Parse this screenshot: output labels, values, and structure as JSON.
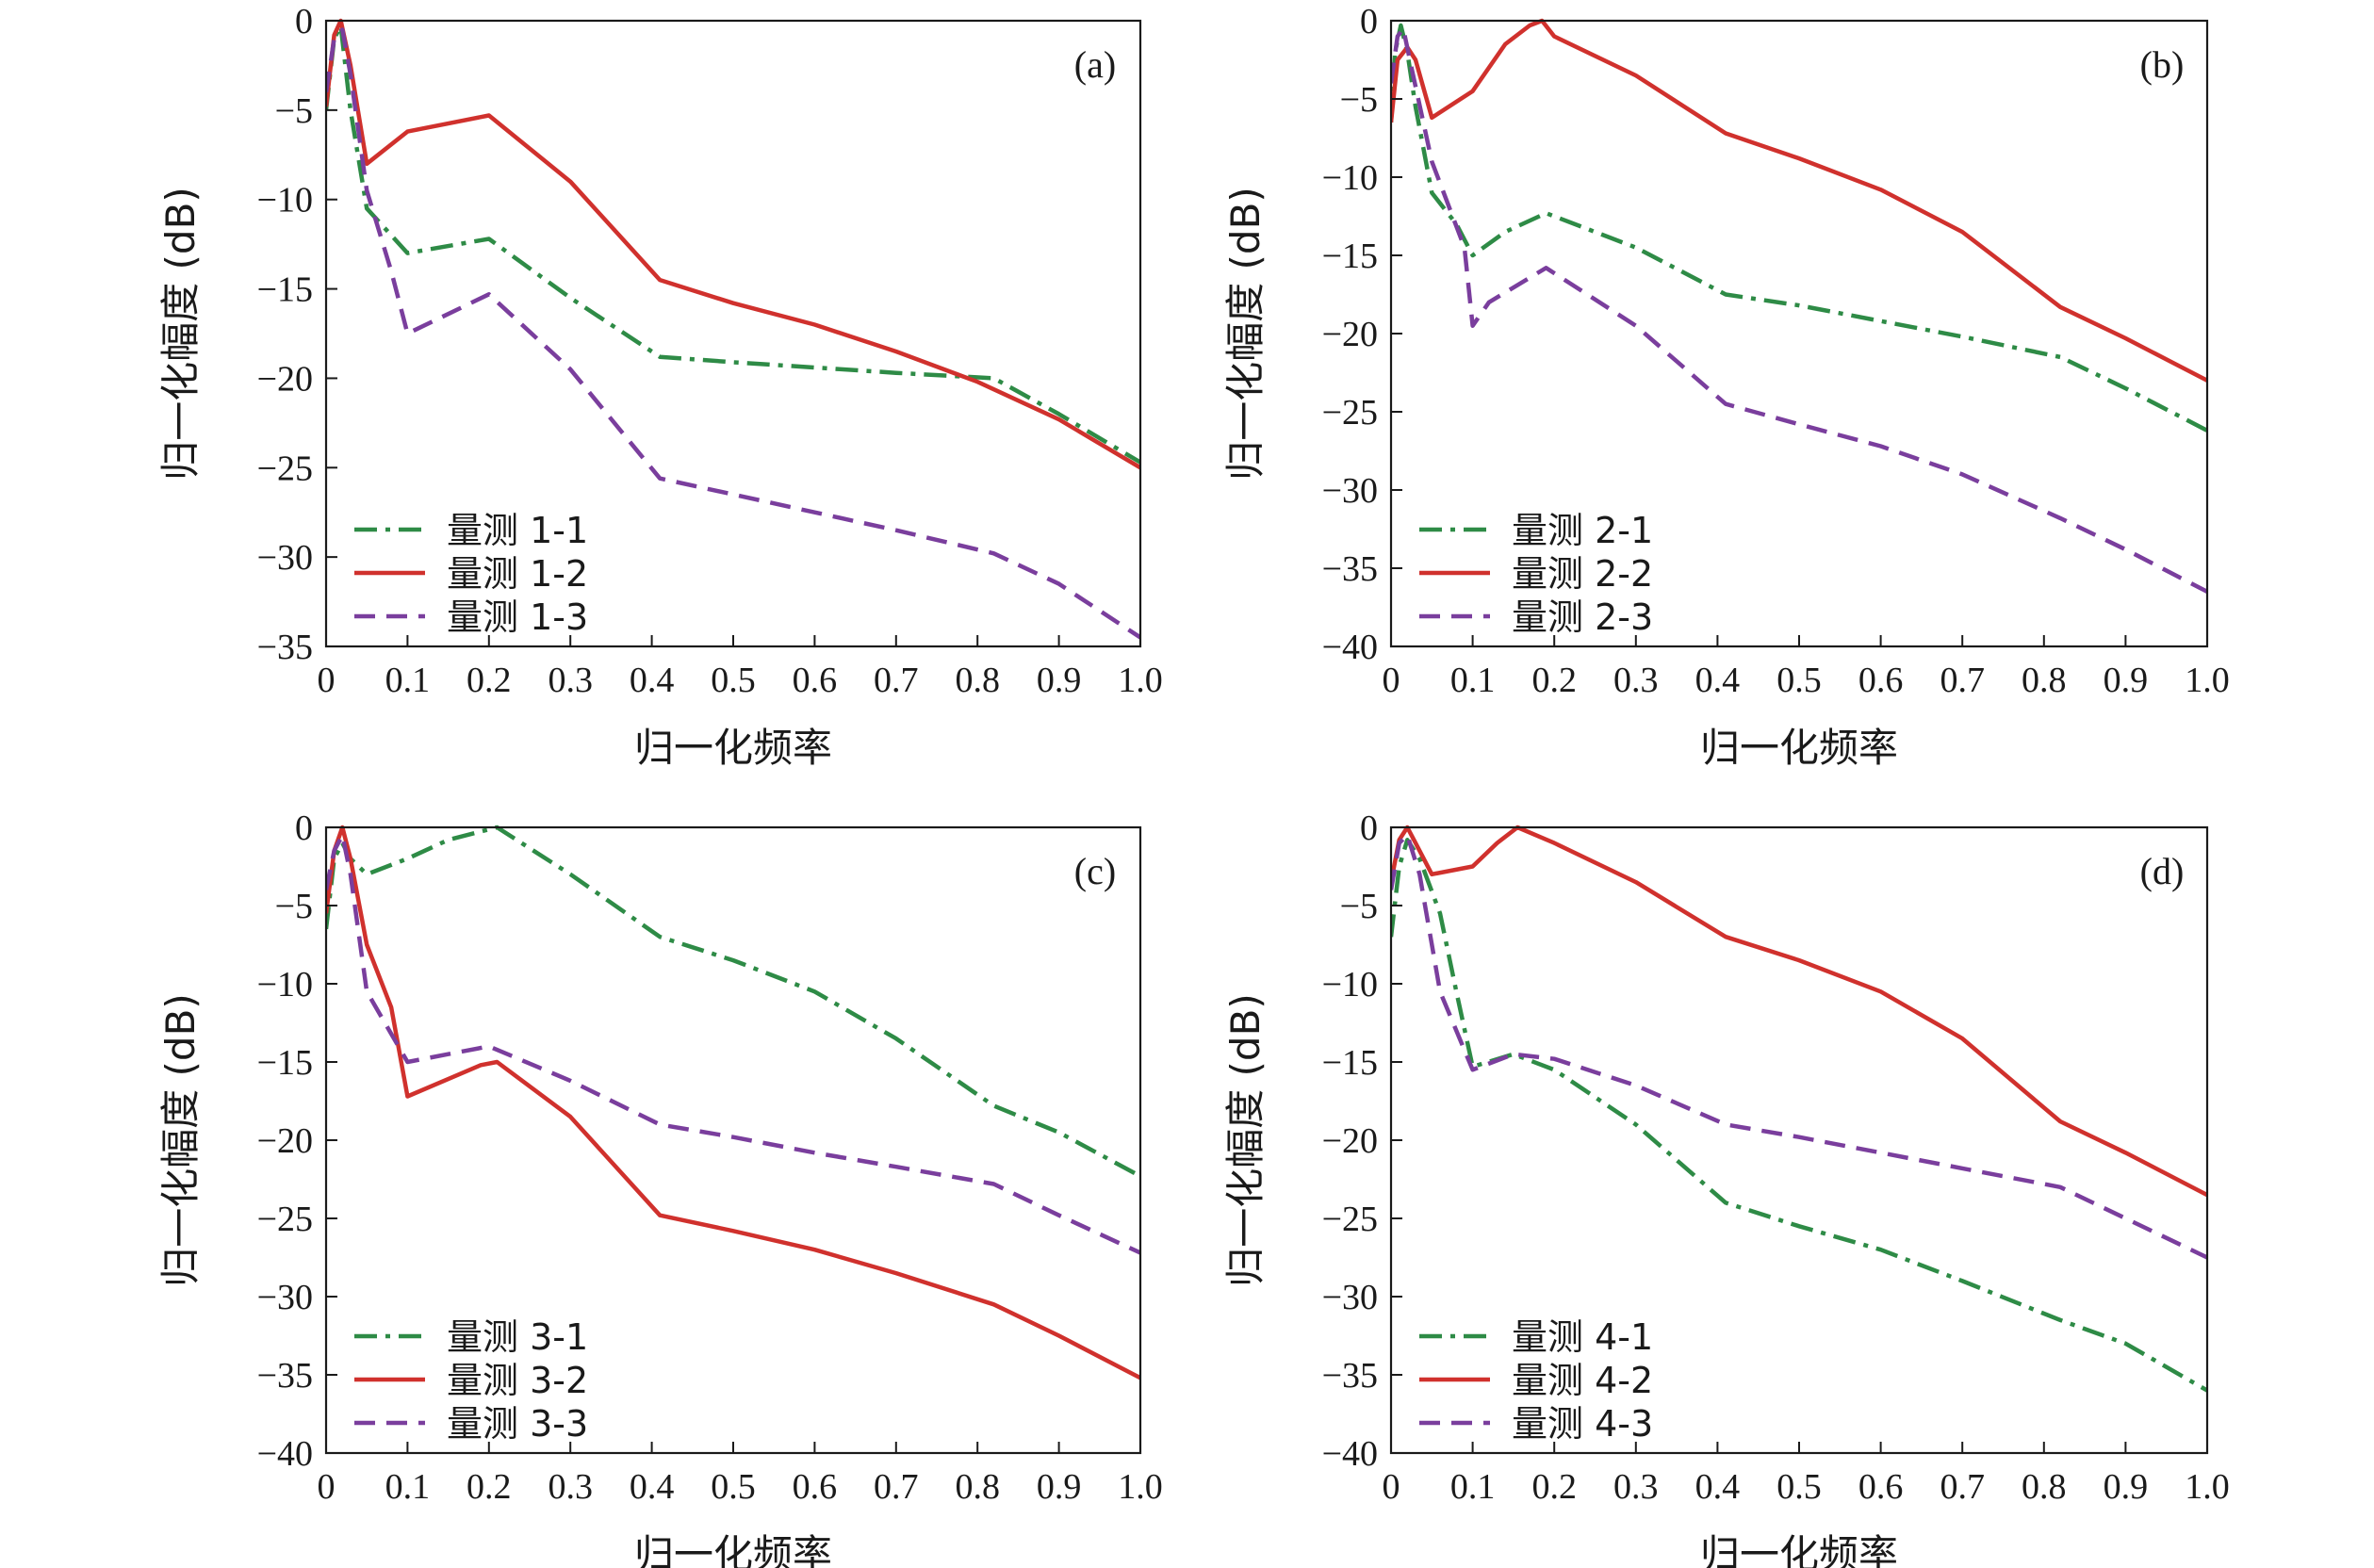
{
  "figure": {
    "colors": {
      "green": "#2e8b46",
      "red": "#d0312d",
      "purple": "#7a3e9d",
      "axis": "#1a1a1a"
    }
  },
  "chart_data": [
    {
      "type": "line",
      "panel_label": "(a)",
      "xlabel": "归一化频率",
      "ylabel": "归一化幅度 (dB)",
      "xlim": [
        0,
        1.0
      ],
      "ylim": [
        -35,
        0
      ],
      "xticks": [
        0,
        0.1,
        0.2,
        0.3,
        0.4,
        0.5,
        0.6,
        0.7,
        0.8,
        0.9,
        1.0
      ],
      "xtick_labels": [
        "0",
        "0.1",
        "0.2",
        "0.3",
        "0.4",
        "0.5",
        "0.6",
        "0.7",
        "0.8",
        "0.9",
        "1.0"
      ],
      "yticks": [
        0,
        -5,
        -10,
        -15,
        -20,
        -25,
        -30,
        -35
      ],
      "ytick_labels": [
        "0",
        "−5",
        "−10",
        "−15",
        "−20",
        "−25",
        "−30",
        "−35"
      ],
      "legend_position": "bottom-left",
      "series": [
        {
          "name": "量测 1-1",
          "style": "dashdot",
          "color": "#2e8b46",
          "x": [
            0,
            0.01,
            0.018,
            0.03,
            0.05,
            0.1,
            0.2,
            0.3,
            0.41,
            0.5,
            0.6,
            0.7,
            0.82,
            0.9,
            1.0
          ],
          "y": [
            -5.0,
            -1.0,
            -0.3,
            -5.0,
            -10.5,
            -13.0,
            -12.2,
            -15.5,
            -18.8,
            -19.1,
            -19.4,
            -19.7,
            -20.0,
            -22.0,
            -24.7
          ]
        },
        {
          "name": "量测 1-2",
          "style": "solid",
          "color": "#d0312d",
          "x": [
            0,
            0.01,
            0.018,
            0.03,
            0.05,
            0.1,
            0.2,
            0.3,
            0.41,
            0.5,
            0.6,
            0.7,
            0.8,
            0.9,
            1.0
          ],
          "y": [
            -4.8,
            -0.8,
            0.0,
            -2.5,
            -8.0,
            -6.2,
            -5.3,
            -9.0,
            -14.5,
            -15.8,
            -17.0,
            -18.5,
            -20.2,
            -22.3,
            -25.0
          ]
        },
        {
          "name": "量测 1-3",
          "style": "dashed",
          "color": "#7a3e9d",
          "x": [
            0,
            0.01,
            0.02,
            0.03,
            0.05,
            0.08,
            0.1,
            0.2,
            0.3,
            0.41,
            0.5,
            0.6,
            0.7,
            0.82,
            0.9,
            1.0
          ],
          "y": [
            -4.0,
            -1.0,
            -0.5,
            -3.0,
            -9.5,
            -14.0,
            -17.5,
            -15.3,
            -19.5,
            -25.6,
            -26.5,
            -27.5,
            -28.5,
            -29.8,
            -31.5,
            -34.5
          ]
        }
      ]
    },
    {
      "type": "line",
      "panel_label": "(b)",
      "xlabel": "归一化频率",
      "ylabel": "归一化幅度 (dB)",
      "xlim": [
        0,
        1.0
      ],
      "ylim": [
        -40,
        0
      ],
      "xticks": [
        0,
        0.1,
        0.2,
        0.3,
        0.4,
        0.5,
        0.6,
        0.7,
        0.8,
        0.9,
        1.0
      ],
      "xtick_labels": [
        "0",
        "0.1",
        "0.2",
        "0.3",
        "0.4",
        "0.5",
        "0.6",
        "0.7",
        "0.8",
        "0.9",
        "1.0"
      ],
      "yticks": [
        0,
        -5,
        -10,
        -15,
        -20,
        -25,
        -30,
        -35,
        -40
      ],
      "ytick_labels": [
        "0",
        "−5",
        "−10",
        "−15",
        "−20",
        "−25",
        "−30",
        "−35",
        "−40"
      ],
      "legend_position": "bottom-left",
      "series": [
        {
          "name": "量测 2-1",
          "style": "dashdot",
          "color": "#2e8b46",
          "x": [
            0,
            0.005,
            0.012,
            0.02,
            0.03,
            0.05,
            0.08,
            0.1,
            0.14,
            0.19,
            0.3,
            0.41,
            0.5,
            0.6,
            0.7,
            0.82,
            0.9,
            1.0
          ],
          "y": [
            -6.5,
            -2.0,
            -0.3,
            -2.0,
            -5.5,
            -11.0,
            -13.0,
            -15.0,
            -13.5,
            -12.3,
            -14.5,
            -17.5,
            -18.2,
            -19.2,
            -20.2,
            -21.5,
            -23.5,
            -26.2
          ]
        },
        {
          "name": "量测 2-2",
          "style": "solid",
          "color": "#d0312d",
          "x": [
            0,
            0.008,
            0.02,
            0.03,
            0.05,
            0.1,
            0.14,
            0.17,
            0.185,
            0.2,
            0.3,
            0.41,
            0.5,
            0.6,
            0.7,
            0.82,
            0.9,
            1.0
          ],
          "y": [
            -6.5,
            -2.5,
            -1.7,
            -2.5,
            -6.2,
            -4.5,
            -1.5,
            -0.3,
            0.0,
            -1.0,
            -3.5,
            -7.2,
            -8.8,
            -10.8,
            -13.5,
            -18.3,
            -20.3,
            -23.0
          ]
        },
        {
          "name": "量测 2-3",
          "style": "dashed",
          "color": "#7a3e9d",
          "x": [
            0,
            0.008,
            0.015,
            0.025,
            0.05,
            0.09,
            0.1,
            0.12,
            0.19,
            0.3,
            0.41,
            0.5,
            0.6,
            0.7,
            0.82,
            0.9,
            1.0
          ],
          "y": [
            -4.0,
            -1.0,
            -0.5,
            -3.0,
            -9.0,
            -14.5,
            -19.5,
            -18.0,
            -15.8,
            -19.5,
            -24.5,
            -25.8,
            -27.2,
            -29.0,
            -31.8,
            -33.8,
            -36.5
          ]
        }
      ]
    },
    {
      "type": "line",
      "panel_label": "(c)",
      "xlabel": "归一化频率",
      "ylabel": "归一化幅度 (dB)",
      "xlim": [
        0,
        1.0
      ],
      "ylim": [
        -40,
        0
      ],
      "xticks": [
        0,
        0.1,
        0.2,
        0.3,
        0.4,
        0.5,
        0.6,
        0.7,
        0.8,
        0.9,
        1.0
      ],
      "xtick_labels": [
        "0",
        "0.1",
        "0.2",
        "0.3",
        "0.4",
        "0.5",
        "0.6",
        "0.7",
        "0.8",
        "0.9",
        "1.0"
      ],
      "yticks": [
        0,
        -5,
        -10,
        -15,
        -20,
        -25,
        -30,
        -35,
        -40
      ],
      "ytick_labels": [
        "0",
        "−5",
        "−10",
        "−15",
        "−20",
        "−25",
        "−30",
        "−35",
        "−40"
      ],
      "legend_position": "bottom-left",
      "series": [
        {
          "name": "量测 3-1",
          "style": "dashdot",
          "color": "#2e8b46",
          "x": [
            0,
            0.01,
            0.02,
            0.03,
            0.05,
            0.1,
            0.15,
            0.21,
            0.3,
            0.41,
            0.5,
            0.6,
            0.7,
            0.82,
            0.9,
            1.0
          ],
          "y": [
            -6.5,
            -2.0,
            -1.0,
            -2.0,
            -3.0,
            -2.0,
            -0.8,
            0.0,
            -3.0,
            -7.0,
            -8.5,
            -10.5,
            -13.5,
            -17.8,
            -19.5,
            -22.3
          ]
        },
        {
          "name": "量测 3-2",
          "style": "solid",
          "color": "#d0312d",
          "x": [
            0,
            0.01,
            0.02,
            0.03,
            0.05,
            0.08,
            0.1,
            0.19,
            0.21,
            0.3,
            0.41,
            0.5,
            0.6,
            0.7,
            0.82,
            0.9,
            1.0
          ],
          "y": [
            -5.5,
            -1.5,
            0.0,
            -2.0,
            -7.5,
            -11.5,
            -17.2,
            -15.2,
            -15.0,
            -18.5,
            -24.8,
            -25.8,
            -27.0,
            -28.5,
            -30.5,
            -32.5,
            -35.2
          ]
        },
        {
          "name": "量测 3-3",
          "style": "dashed",
          "color": "#7a3e9d",
          "x": [
            0,
            0.01,
            0.02,
            0.03,
            0.05,
            0.1,
            0.2,
            0.3,
            0.41,
            0.5,
            0.6,
            0.7,
            0.82,
            0.9,
            1.0
          ],
          "y": [
            -4.0,
            -1.5,
            -0.5,
            -3.0,
            -10.5,
            -15.0,
            -14.0,
            -16.2,
            -19.0,
            -19.8,
            -20.8,
            -21.7,
            -22.8,
            -24.8,
            -27.2
          ]
        }
      ]
    },
    {
      "type": "line",
      "panel_label": "(d)",
      "xlabel": "归一化频率",
      "ylabel": "归一化幅度 (dB)",
      "xlim": [
        0,
        1.0
      ],
      "ylim": [
        -40,
        0
      ],
      "xticks": [
        0,
        0.1,
        0.2,
        0.3,
        0.4,
        0.5,
        0.6,
        0.7,
        0.8,
        0.9,
        1.0
      ],
      "xtick_labels": [
        "0",
        "0.1",
        "0.2",
        "0.3",
        "0.4",
        "0.5",
        "0.6",
        "0.7",
        "0.8",
        "0.9",
        "1.0"
      ],
      "yticks": [
        0,
        -5,
        -10,
        -15,
        -20,
        -25,
        -30,
        -35,
        -40
      ],
      "ytick_labels": [
        "0",
        "−5",
        "−10",
        "−15",
        "−20",
        "−25",
        "−30",
        "−35",
        "−40"
      ],
      "legend_position": "bottom-left",
      "series": [
        {
          "name": "量测 4-1",
          "style": "dashdot",
          "color": "#2e8b46",
          "x": [
            0,
            0.01,
            0.02,
            0.035,
            0.06,
            0.08,
            0.1,
            0.15,
            0.2,
            0.3,
            0.41,
            0.5,
            0.6,
            0.7,
            0.82,
            0.9,
            1.0
          ],
          "y": [
            -7.0,
            -2.5,
            -0.8,
            -2.0,
            -5.5,
            -10.5,
            -15.3,
            -14.5,
            -15.5,
            -19.0,
            -24.0,
            -25.5,
            -27.0,
            -29.0,
            -31.5,
            -33.0,
            -36.0
          ]
        },
        {
          "name": "量测 4-2",
          "style": "solid",
          "color": "#d0312d",
          "x": [
            0,
            0.01,
            0.02,
            0.03,
            0.05,
            0.1,
            0.13,
            0.155,
            0.2,
            0.3,
            0.41,
            0.5,
            0.6,
            0.7,
            0.82,
            0.9,
            1.0
          ],
          "y": [
            -3.5,
            -0.8,
            0.0,
            -1.0,
            -3.0,
            -2.5,
            -1.0,
            0.0,
            -1.0,
            -3.5,
            -7.0,
            -8.5,
            -10.5,
            -13.5,
            -18.8,
            -20.8,
            -23.5
          ]
        },
        {
          "name": "量测 4-3",
          "style": "dashed",
          "color": "#7a3e9d",
          "x": [
            0,
            0.01,
            0.02,
            0.035,
            0.06,
            0.08,
            0.1,
            0.15,
            0.2,
            0.3,
            0.41,
            0.5,
            0.6,
            0.7,
            0.82,
            0.9,
            1.0
          ],
          "y": [
            -4.0,
            -1.0,
            -0.5,
            -3.0,
            -10.5,
            -13.0,
            -15.5,
            -14.5,
            -14.8,
            -16.5,
            -19.0,
            -19.8,
            -20.8,
            -21.8,
            -23.0,
            -25.0,
            -27.5
          ]
        }
      ]
    }
  ]
}
